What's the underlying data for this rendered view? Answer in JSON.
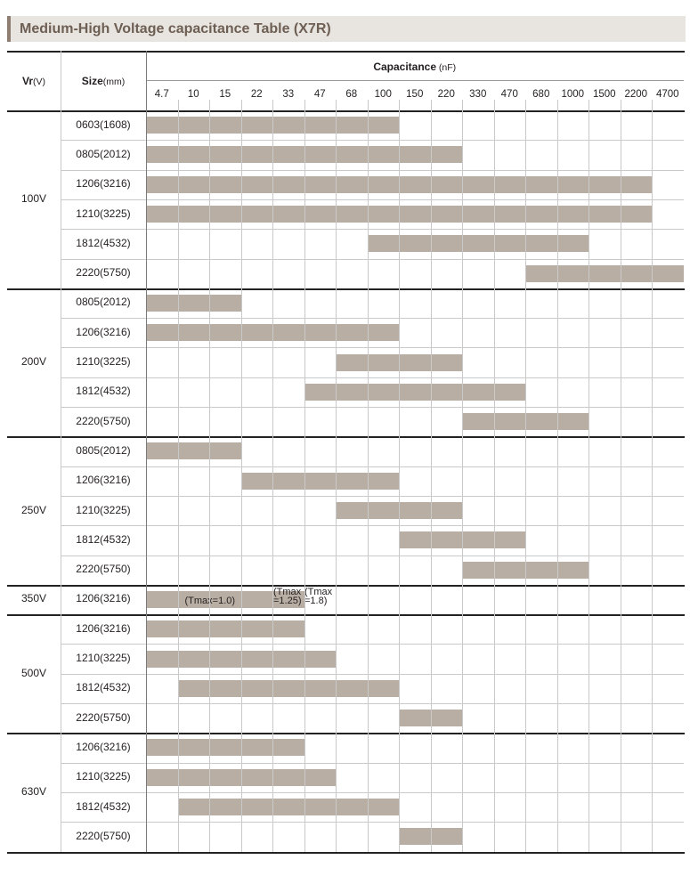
{
  "title": "Medium-High Voltage capacitance Table (X7R)",
  "header": {
    "vr_label": "Vr",
    "vr_unit": "(V)",
    "size_label": "Size",
    "size_unit": "(mm)",
    "cap_label": "Capacitance",
    "cap_unit": "(nF)"
  },
  "capacitance_values": [
    "4.7",
    "10",
    "15",
    "22",
    "33",
    "47",
    "68",
    "100",
    "150",
    "220",
    "330",
    "470",
    "680",
    "1000",
    "1500",
    "2200",
    "4700"
  ],
  "groups": [
    {
      "voltage": "100V",
      "rows": [
        {
          "size": "0603(1608)",
          "bar": [
            "4.7",
            "100"
          ]
        },
        {
          "size": "0805(2012)",
          "bar": [
            "4.7",
            "220"
          ]
        },
        {
          "size": "1206(3216)",
          "bar": [
            "4.7",
            "2200"
          ]
        },
        {
          "size": "1210(3225)",
          "bar": [
            "4.7",
            "2200"
          ]
        },
        {
          "size": "1812(4532)",
          "bar": [
            "100",
            "1000"
          ]
        },
        {
          "size": "2220(5750)",
          "bar": [
            "680",
            "4700"
          ]
        }
      ]
    },
    {
      "voltage": "200V",
      "rows": [
        {
          "size": "0805(2012)",
          "bar": [
            "4.7",
            "15"
          ]
        },
        {
          "size": "1206(3216)",
          "bar": [
            "4.7",
            "100"
          ]
        },
        {
          "size": "1210(3225)",
          "bar": [
            "68",
            "220"
          ]
        },
        {
          "size": "1812(4532)",
          "bar": [
            "47",
            "470"
          ]
        },
        {
          "size": "2220(5750)",
          "bar": [
            "330",
            "1000"
          ]
        }
      ]
    },
    {
      "voltage": "250V",
      "rows": [
        {
          "size": "0805(2012)",
          "bar": [
            "4.7",
            "15"
          ]
        },
        {
          "size": "1206(3216)",
          "bar": [
            "22",
            "100"
          ]
        },
        {
          "size": "1210(3225)",
          "bar": [
            "68",
            "220"
          ]
        },
        {
          "size": "1812(4532)",
          "bar": [
            "150",
            "470"
          ]
        },
        {
          "size": "2220(5750)",
          "bar": [
            "330",
            "1000"
          ]
        }
      ]
    },
    {
      "voltage": "350V",
      "rows": [
        {
          "size": "1206(3216)",
          "bar": [
            "4.7",
            "33"
          ],
          "notes": [
            "(Tmax=1.0)",
            "(Tmax\n=1.25)",
            "(Tmax\n=1.8)"
          ]
        }
      ]
    },
    {
      "voltage": "500V",
      "rows": [
        {
          "size": "1206(3216)",
          "bar": [
            "4.7",
            "33"
          ]
        },
        {
          "size": "1210(3225)",
          "bar": [
            "4.7",
            "47"
          ]
        },
        {
          "size": "1812(4532)",
          "bar": [
            "10",
            "100"
          ]
        },
        {
          "size": "2220(5750)",
          "bar": [
            "150",
            "220"
          ]
        }
      ]
    },
    {
      "voltage": "630V",
      "rows": [
        {
          "size": "1206(3216)",
          "bar": [
            "4.7",
            "33"
          ]
        },
        {
          "size": "1210(3225)",
          "bar": [
            "4.7",
            "47"
          ]
        },
        {
          "size": "1812(4532)",
          "bar": [
            "10",
            "100"
          ]
        },
        {
          "size": "2220(5750)",
          "bar": [
            "150",
            "220"
          ]
        }
      ]
    }
  ],
  "colors": {
    "bar": "#b9aea3",
    "title_bg": "#e8e4df",
    "title_text": "#6e5f54",
    "accent": "#8f7f72"
  }
}
